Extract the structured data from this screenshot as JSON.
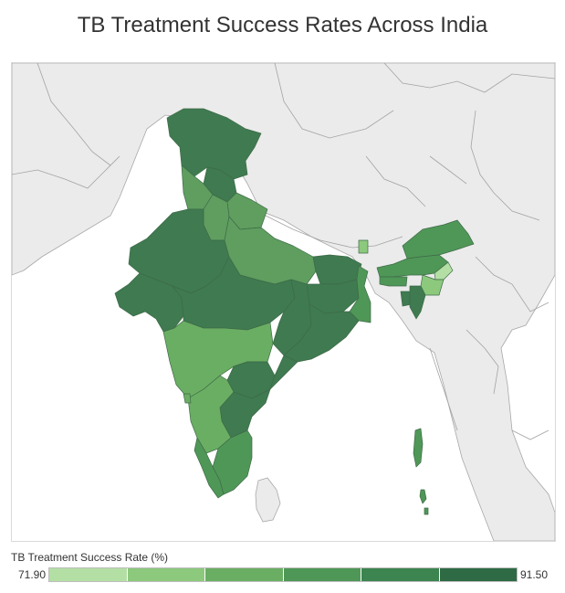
{
  "title": "TB Treatment Success Rates Across India",
  "legend": {
    "title": "TB Treatment Success Rate (%)",
    "min_label": "71.90",
    "max_label": "91.50",
    "min": 71.9,
    "max": 91.5,
    "steps": [
      "#b3dfa4",
      "#8cc97d",
      "#6aae63",
      "#4f9757",
      "#3c8450",
      "#2e6a44"
    ]
  },
  "colors": {
    "land": "#ebebeb",
    "ocean": "#ffffff",
    "border": "#9a9a9a",
    "state_border": "#3f6b48"
  }
}
